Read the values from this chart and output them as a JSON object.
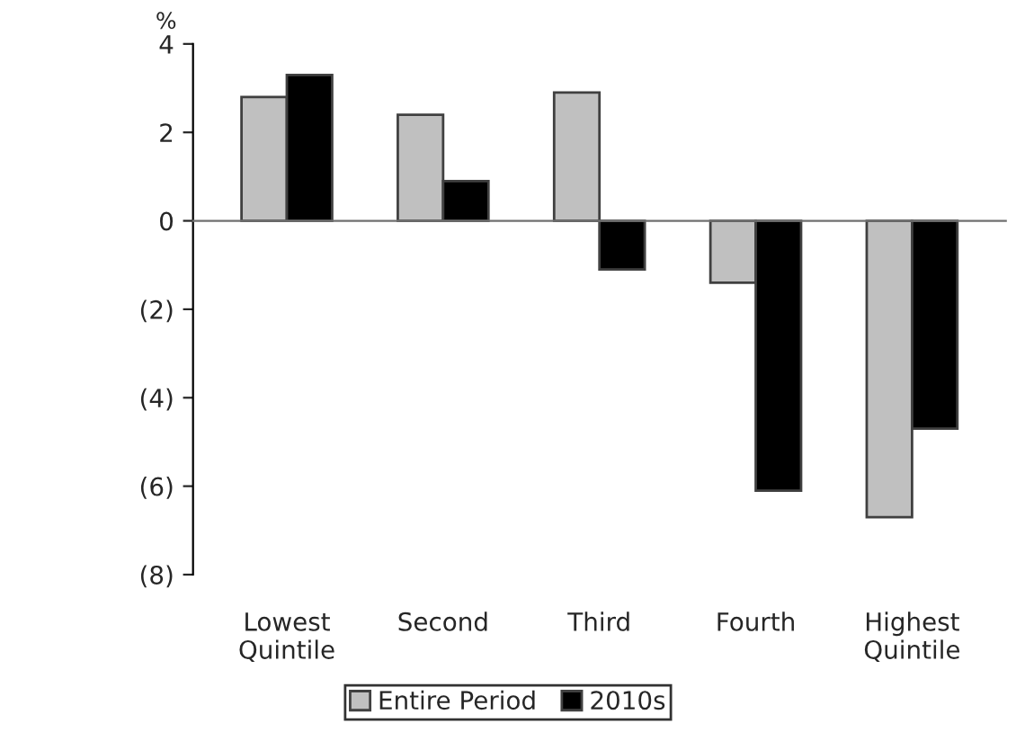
{
  "chart_data": {
    "type": "bar",
    "ylabel": "%",
    "categories": [
      "Lowest\nQuintile",
      "Second",
      "Third",
      "Fourth",
      "Highest\nQuintile"
    ],
    "series": [
      {
        "name": "Entire Period",
        "color": "#c0c0c0",
        "values": [
          2.8,
          2.4,
          2.9,
          -1.4,
          -6.7
        ]
      },
      {
        "name": "2010s",
        "color": "#000000",
        "values": [
          3.3,
          0.9,
          -1.1,
          -6.1,
          -4.7
        ]
      }
    ],
    "ylim": [
      -8,
      4
    ],
    "yticks": [
      {
        "value": -8,
        "label": "(8)"
      },
      {
        "value": -6,
        "label": "(6)"
      },
      {
        "value": -4,
        "label": "(4)"
      },
      {
        "value": -2,
        "label": "(2)"
      },
      0,
      2,
      4
    ],
    "legend": "bottom"
  }
}
